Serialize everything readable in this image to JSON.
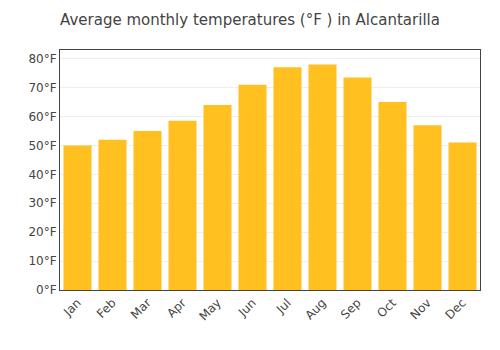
{
  "chart_data": {
    "type": "bar",
    "title": "Average monthly temperatures (°F ) in Alcantarilla",
    "categories": [
      "Jan",
      "Feb",
      "Mar",
      "Apr",
      "May",
      "Jun",
      "Jul",
      "Aug",
      "Sep",
      "Oct",
      "Nov",
      "Dec"
    ],
    "values": [
      50,
      52,
      55,
      58.5,
      64,
      71,
      77,
      78,
      73.5,
      65,
      57,
      51
    ],
    "color": "#FFC020",
    "ylim": [
      0,
      83
    ],
    "yticks": [
      {
        "value": 0,
        "label": "0°F"
      },
      {
        "value": 10,
        "label": "10°F"
      },
      {
        "value": 20,
        "label": "20°F"
      },
      {
        "value": 30,
        "label": "30°F"
      },
      {
        "value": 40,
        "label": "40°F"
      },
      {
        "value": 50,
        "label": "50°F"
      },
      {
        "value": 60,
        "label": "60°F"
      },
      {
        "value": 70,
        "label": "70°F"
      },
      {
        "value": 80,
        "label": "80°F"
      }
    ],
    "grid": true
  }
}
